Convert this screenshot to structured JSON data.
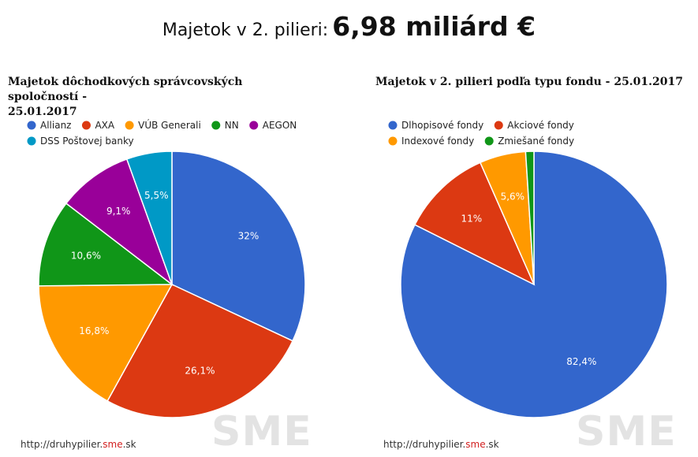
{
  "header": {
    "label": "Majetok v 2. pilieri:",
    "total": "6,98 miliárd €"
  },
  "footer": {
    "url_prefix": "http://druhypilier.",
    "url_highlight": "sme",
    "url_suffix": ".sk",
    "watermark": "SME"
  },
  "chart_data": [
    {
      "type": "pie",
      "title": "Majetok dôchodkových správcovských spoločností - 25.01.2017",
      "title_line1": "Majetok dôchodkových správcovských spoločností -",
      "title_line2": "25.01.2017",
      "legend_position": "top",
      "slices": [
        {
          "label": "Allianz",
          "value": 32,
          "display": "32%",
          "color": "#3366cc"
        },
        {
          "label": "AXA",
          "value": 26.1,
          "display": "26,1%",
          "color": "#dc3912"
        },
        {
          "label": "VÚB Generali",
          "value": 16.8,
          "display": "16,8%",
          "color": "#ff9900"
        },
        {
          "label": "NN",
          "value": 10.6,
          "display": "10,6%",
          "color": "#109618"
        },
        {
          "label": "AEGON",
          "value": 9.1,
          "display": "9,1%",
          "color": "#990099"
        },
        {
          "label": "DSS Poštovej banky",
          "value": 5.5,
          "display": "5,5%",
          "color": "#0099c6"
        }
      ]
    },
    {
      "type": "pie",
      "title": "Majetok v 2. pilieri podľa typu fondu - 25.01.2017",
      "legend_position": "top",
      "slices": [
        {
          "label": "Dlhopisové fondy",
          "value": 82.4,
          "display": "82,4%",
          "color": "#3366cc"
        },
        {
          "label": "Akciové fondy",
          "value": 11,
          "display": "11%",
          "color": "#dc3912"
        },
        {
          "label": "Indexové fondy",
          "value": 5.6,
          "display": "5,6%",
          "color": "#ff9900"
        },
        {
          "label": "Zmiešané fondy",
          "value": 1,
          "display": "",
          "color": "#109618"
        }
      ]
    }
  ]
}
